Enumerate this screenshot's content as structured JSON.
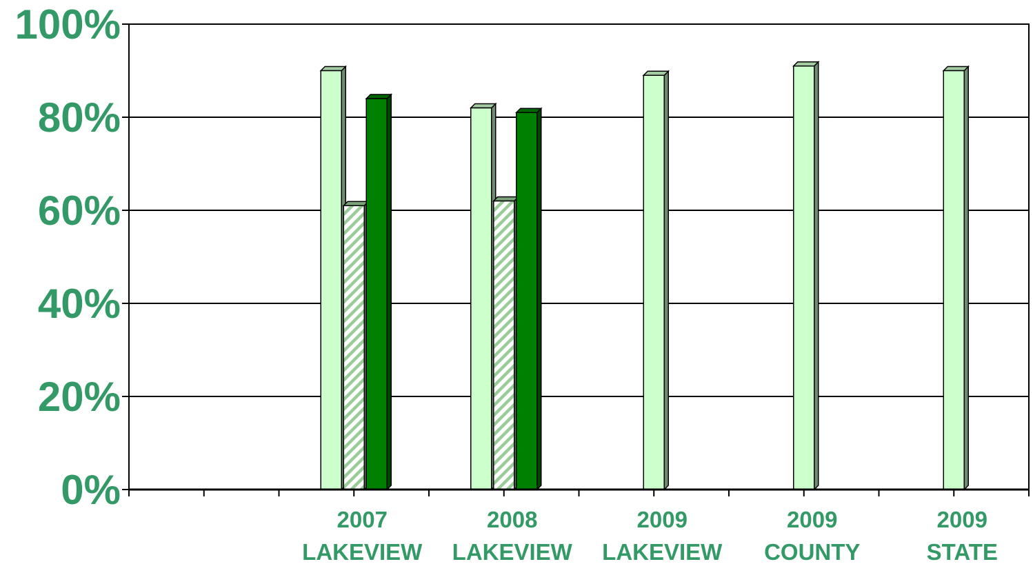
{
  "chart_data": {
    "type": "bar",
    "title": "",
    "xlabel": "",
    "ylabel": "",
    "ylim": [
      0,
      100
    ],
    "y_ticks": [
      "0%",
      "20%",
      "40%",
      "60%",
      "80%",
      "100%"
    ],
    "grid": true,
    "legend": "none",
    "categories": [
      {
        "line1": "",
        "line2": ""
      },
      {
        "line1": "2007",
        "line2": "LAKEVIEW"
      },
      {
        "line1": "2008",
        "line2": "LAKEVIEW"
      },
      {
        "line1": "2009",
        "line2": "LAKEVIEW"
      },
      {
        "line1": "2009",
        "line2": "COUNTY"
      },
      {
        "line1": "2009",
        "line2": "STATE"
      }
    ],
    "series": [
      {
        "pattern": "solid",
        "color": "#ccffcc",
        "values": [
          null,
          90,
          82,
          89,
          91,
          90
        ]
      },
      {
        "pattern": "hatched",
        "color": "#99cc99",
        "values": [
          null,
          61,
          62,
          null,
          null,
          null
        ]
      },
      {
        "pattern": "solid",
        "color": "#008000",
        "values": [
          null,
          84,
          81,
          null,
          null,
          null
        ]
      }
    ],
    "colors": {
      "text": "#339966",
      "grid": "#000000"
    }
  }
}
